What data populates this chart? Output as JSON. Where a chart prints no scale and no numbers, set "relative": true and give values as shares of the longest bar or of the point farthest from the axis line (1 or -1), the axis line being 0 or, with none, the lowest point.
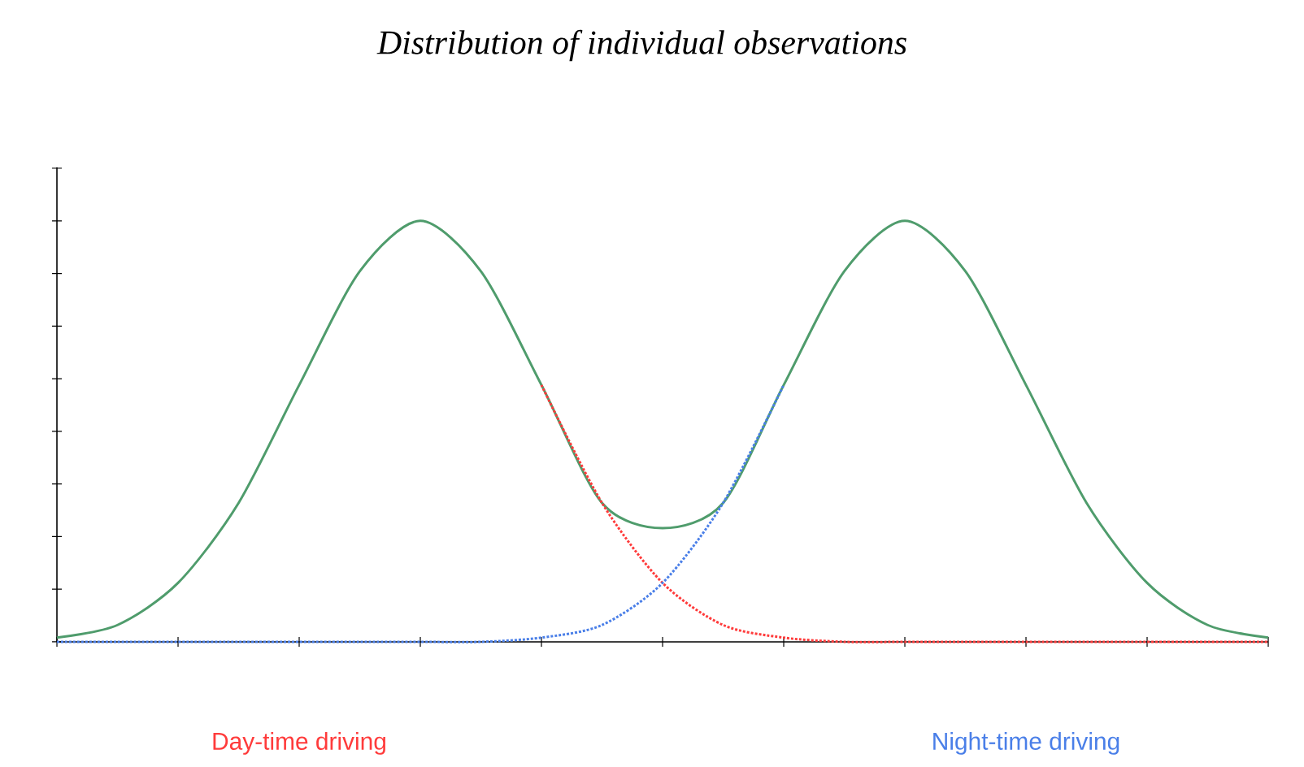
{
  "chart_data": {
    "type": "line",
    "title": "*Distribution of individual observations*",
    "relative": true,
    "categories": [
      null,
      null,
      null,
      null,
      null,
      null,
      null,
      null,
      null,
      null,
      null,
      null,
      null,
      null,
      null,
      null,
      null,
      null,
      null,
      null,
      null
    ],
    "series": [
      {
        "color": "#4f9c6c",
        "line_style": "solid",
        "values": [
          0.01,
          0.04,
          0.14,
          0.33,
          0.61,
          0.88,
          1,
          0.88,
          0.61,
          0.33,
          0.27,
          0.33,
          0.61,
          0.88,
          1,
          0.88,
          0.61,
          0.33,
          0.14,
          0.04,
          0.01
        ]
      },
      {
        "color": "#ff3b3b",
        "line_style": "dotted",
        "name": "Day-time driving",
        "values": [
          null,
          null,
          null,
          null,
          null,
          null,
          null,
          null,
          0.61,
          0.33,
          0.14,
          0.04,
          0.01,
          0,
          0,
          0,
          0,
          0,
          0,
          0,
          0
        ]
      },
      {
        "color": "#4a7fe8",
        "line_style": "dotted",
        "name": "Night-time driving",
        "values": [
          0,
          0,
          0,
          0,
          0,
          0,
          0,
          0,
          0.01,
          0.04,
          0.14,
          0.33,
          0.61,
          null,
          null,
          null,
          null,
          null,
          null,
          null,
          null
        ]
      }
    ]
  }
}
